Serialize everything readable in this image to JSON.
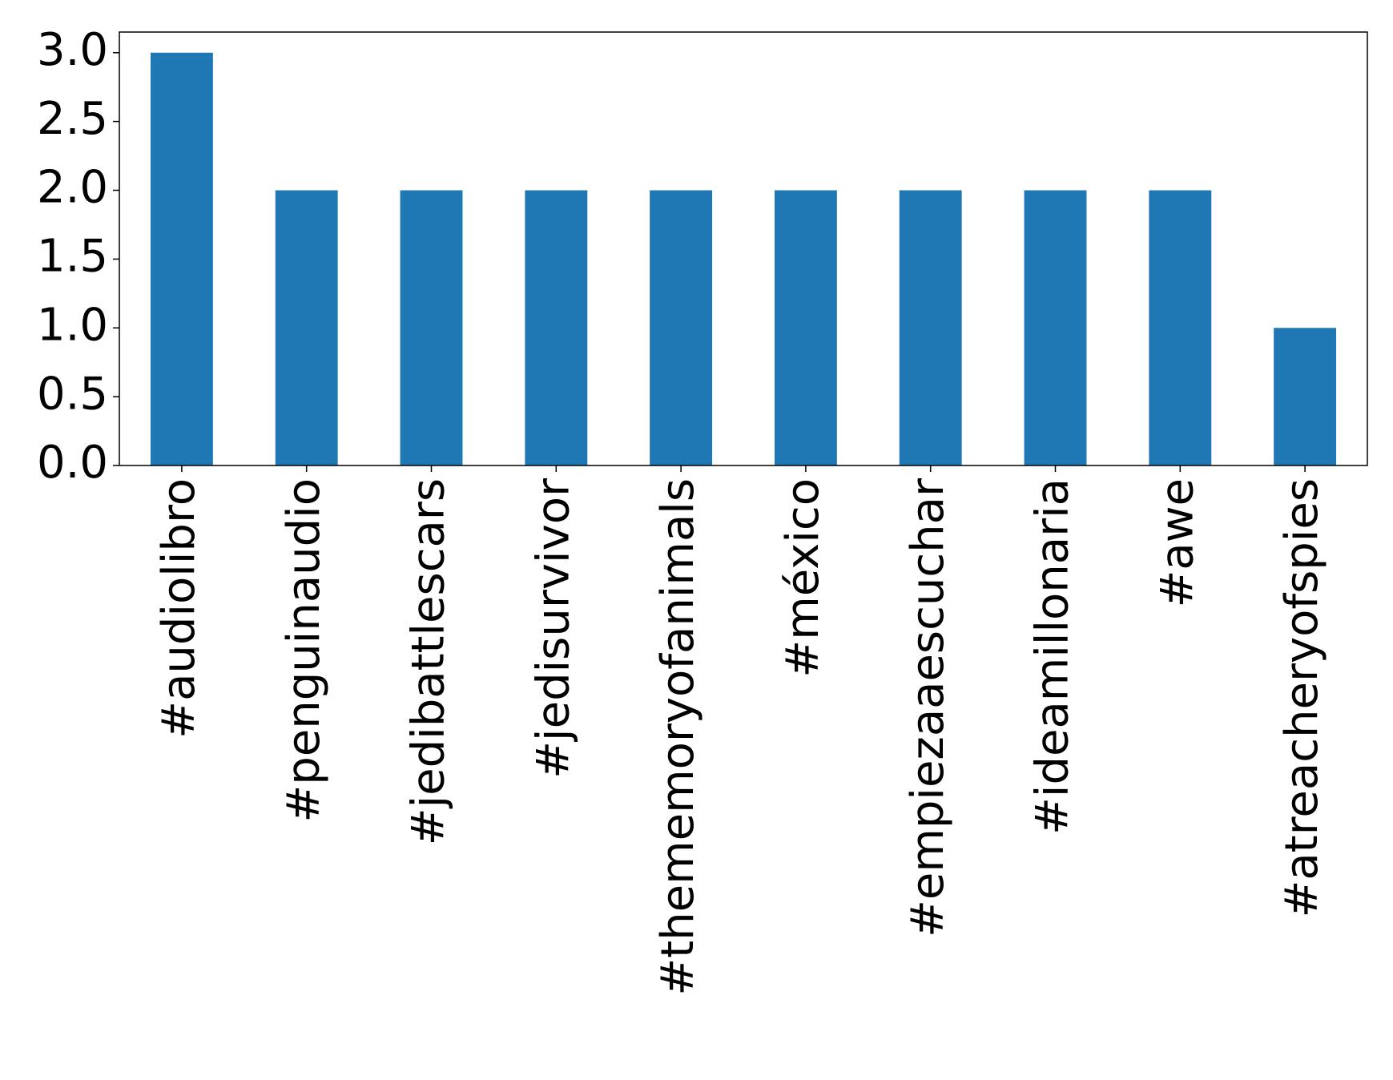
{
  "chart_data": {
    "type": "bar",
    "categories": [
      "#audiolibro",
      "#penguinaudio",
      "#jedibattlescars",
      "#jedisurvivor",
      "#thememoryofanimals",
      "#méxico",
      "#empiezaaescuchar",
      "#ideamillonaria",
      "#awe",
      "#atreacheryofspies"
    ],
    "values": [
      3,
      2,
      2,
      2,
      2,
      2,
      2,
      2,
      2,
      1
    ],
    "color": "#1f77b4",
    "ylim": [
      0,
      3.15
    ],
    "yticks": [
      {
        "value": 0,
        "label": "0.0"
      },
      0.5,
      {
        "value": 1,
        "label": "1.0"
      },
      1.5,
      {
        "value": 2,
        "label": "2.0"
      },
      2.5,
      {
        "value": 3,
        "label": "3.0"
      }
    ],
    "grid": false
  }
}
